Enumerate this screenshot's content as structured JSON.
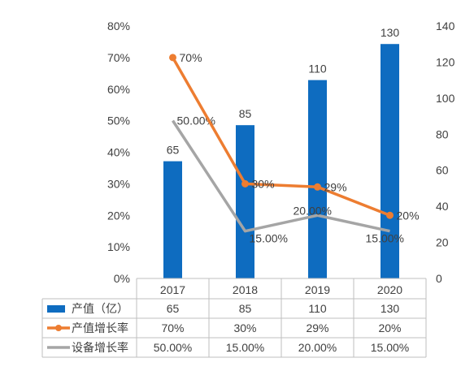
{
  "chart_data": {
    "type": "bar",
    "categories": [
      "2017",
      "2018",
      "2019",
      "2020"
    ],
    "series": [
      {
        "name": "产值（亿）",
        "type": "bar",
        "axis": "right",
        "values": [
          65,
          85,
          110,
          130
        ],
        "labels": [
          "65",
          "85",
          "110",
          "130"
        ],
        "table_values": [
          "65",
          "85",
          "110",
          "130"
        ],
        "color": "#0e6cc0"
      },
      {
        "name": "产值增长率",
        "type": "line",
        "marker": "circle",
        "axis": "left",
        "values": [
          70,
          30,
          29,
          20
        ],
        "labels": [
          "70%",
          "30%",
          "29%",
          "20%"
        ],
        "table_values": [
          "70%",
          "30%",
          "29%",
          "20%"
        ],
        "color": "#ed7d31"
      },
      {
        "name": "设备增长率",
        "type": "line",
        "marker": "none",
        "axis": "left",
        "values": [
          50,
          15,
          20,
          15
        ],
        "labels": [
          "50.00%",
          "15.00%",
          "20.00%",
          "15.00%"
        ],
        "table_values": [
          "50.00%",
          "15.00%",
          "20.00%",
          "15.00%"
        ],
        "color": "#a5a5a5"
      }
    ],
    "left_axis": {
      "min": 0,
      "max": 80,
      "step": 10,
      "tick_labels": [
        "0%",
        "10%",
        "20%",
        "30%",
        "40%",
        "50%",
        "60%",
        "70%",
        "80%"
      ]
    },
    "right_axis": {
      "min": 0,
      "max": 140,
      "step": 20,
      "tick_labels": [
        "0",
        "20",
        "40",
        "60",
        "80",
        "100",
        "120",
        "140"
      ]
    },
    "grid": false,
    "data_table": true,
    "legend": "in data table"
  }
}
